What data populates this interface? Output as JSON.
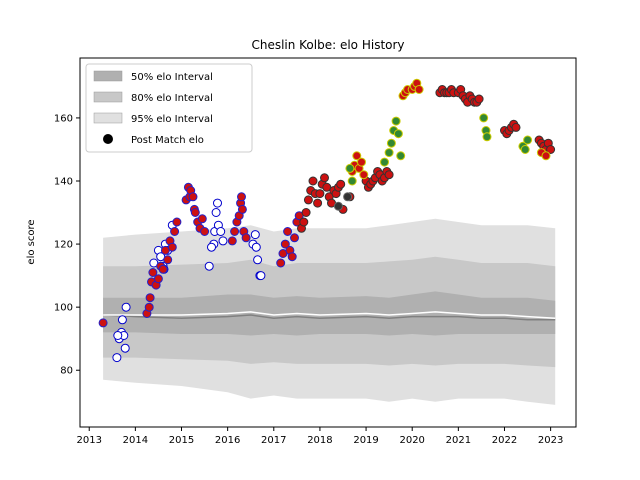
{
  "chart_data": {
    "type": "scatter",
    "title": "Cheslin Kolbe: elo History",
    "xlabel": "",
    "ylabel": "elo score",
    "xlim": [
      2012.8,
      2023.55
    ],
    "ylim": [
      62,
      179
    ],
    "xticks": [
      2013,
      2014,
      2015,
      2016,
      2017,
      2018,
      2019,
      2020,
      2021,
      2022,
      2023
    ],
    "xtick_labels": [
      "2013",
      "2014",
      "2015",
      "2016",
      "2017",
      "2018",
      "2019",
      "2020",
      "2021",
      "2022",
      "2023"
    ],
    "yticks": [
      80,
      100,
      120,
      140,
      160
    ],
    "ytick_labels": [
      "80",
      "100",
      "120",
      "140",
      "160"
    ],
    "grid": false,
    "legend_position": "top-left",
    "legend": [
      {
        "label": "50% elo Interval",
        "kind": "band",
        "color": "#b0b0b0"
      },
      {
        "label": "80% elo Interval",
        "kind": "band",
        "color": "#c8c8c8"
      },
      {
        "label": "95% elo Interval",
        "kind": "band",
        "color": "#e0e0e0"
      },
      {
        "label": "Post Match elo",
        "kind": "marker",
        "color": "#000000"
      }
    ],
    "intervals": {
      "x": [
        2013.3,
        2014.0,
        2015.0,
        2016.0,
        2016.5,
        2017.0,
        2017.5,
        2018.0,
        2019.0,
        2019.5,
        2020.0,
        2020.5,
        2021.0,
        2021.5,
        2022.0,
        2022.5,
        2023.1
      ],
      "median": [
        97.5,
        97,
        96.5,
        97,
        97.5,
        96.5,
        97,
        96.5,
        97,
        96.5,
        97,
        97,
        97,
        96.5,
        96.5,
        96,
        96
      ],
      "mean": [
        97.5,
        97.5,
        97.5,
        98,
        98.5,
        97.5,
        98,
        97.5,
        98,
        97.5,
        98,
        98.5,
        98,
        97.5,
        97.5,
        97,
        96.5
      ],
      "p50_low": [
        92,
        92,
        91.5,
        91.5,
        91,
        91.5,
        91,
        91.5,
        91.5,
        91,
        91.5,
        91,
        91.5,
        91.5,
        91.5,
        91.5,
        91.5
      ],
      "p50_high": [
        103,
        103,
        103,
        104,
        104,
        103,
        103.5,
        103,
        103.5,
        103,
        104,
        105,
        104,
        103,
        103,
        103,
        102
      ],
      "p80_low": [
        84,
        84,
        83.5,
        83,
        82,
        82.5,
        82,
        82,
        82,
        81.5,
        82,
        81.5,
        82,
        82,
        82,
        81.5,
        81
      ],
      "p80_high": [
        113,
        113,
        113.5,
        114,
        115,
        113,
        114,
        114,
        114,
        114.5,
        115,
        116,
        115,
        114,
        114,
        114,
        113
      ],
      "p95_low": [
        77,
        76,
        75,
        73,
        71,
        72,
        71,
        71,
        71,
        70,
        71,
        70,
        71,
        71,
        71,
        70,
        69
      ],
      "p95_high": [
        122,
        123,
        124,
        125,
        126,
        124,
        125,
        125,
        125,
        126,
        127,
        128,
        127,
        126,
        126,
        126,
        125
      ]
    },
    "series": [
      {
        "fill": "#ffffff",
        "edge": "#0000cc",
        "x": [
          2013.6,
          2013.65,
          2013.7,
          2013.72,
          2013.75,
          2013.8,
          2013.62,
          2013.78,
          2014.4,
          2014.5,
          2014.55,
          2014.6,
          2014.62,
          2014.65,
          2014.7,
          2014.8,
          2015.7,
          2015.72,
          2015.75,
          2015.78,
          2015.8,
          2015.85,
          2015.9,
          2015.6,
          2015.65,
          2016.55,
          2016.6,
          2016.62,
          2016.65,
          2016.7,
          2016.72
        ],
        "y": [
          84,
          90,
          92,
          96,
          91,
          100,
          91,
          87,
          114,
          118,
          116,
          113,
          112,
          120,
          118,
          126,
          120,
          124,
          130,
          133,
          126,
          124,
          121,
          113,
          119,
          120,
          123,
          119,
          115,
          110,
          110
        ]
      },
      {
        "fill": "#cc1111",
        "edge": "#2222cc",
        "x": [
          2013.3,
          2014.25,
          2014.3,
          2014.32,
          2014.35,
          2014.38,
          2014.45,
          2014.5,
          2014.55,
          2014.6,
          2014.65,
          2014.7,
          2014.75,
          2014.8,
          2014.85,
          2014.9,
          2015.1,
          2015.15,
          2015.18,
          2015.2,
          2015.25,
          2015.28,
          2015.3,
          2015.35,
          2015.4,
          2015.45,
          2015.5,
          2016.1,
          2016.15,
          2016.2,
          2016.25,
          2016.28,
          2016.3,
          2016.32,
          2016.35,
          2016.4,
          2017.15,
          2017.2,
          2017.25,
          2017.3,
          2017.35,
          2017.4,
          2017.45,
          2017.5,
          2017.55
        ],
        "y": [
          95,
          98,
          100,
          103,
          108,
          111,
          107,
          109,
          113,
          112,
          118,
          115,
          121,
          119,
          124,
          127,
          134,
          138,
          135,
          137,
          135,
          131,
          130,
          127,
          125,
          128,
          124,
          121,
          124,
          127,
          129,
          133,
          135,
          131,
          124,
          122,
          114,
          117,
          120,
          124,
          118,
          116,
          122,
          127,
          129
        ]
      },
      {
        "fill": "#cc1111",
        "edge": "#333333",
        "x": [
          2017.6,
          2017.65,
          2017.7,
          2017.75,
          2017.8,
          2017.85,
          2017.9,
          2017.95,
          2018.0,
          2018.05,
          2018.1,
          2018.15,
          2018.2,
          2018.25,
          2018.3,
          2018.35,
          2018.4,
          2018.45,
          2018.5,
          2018.65,
          2019.0,
          2019.05,
          2019.1,
          2019.15,
          2019.2,
          2019.25,
          2019.3,
          2019.35,
          2019.4,
          2019.45,
          2019.5,
          2020.6,
          2020.65,
          2020.7,
          2020.75,
          2020.8,
          2020.85,
          2020.9,
          2021.0,
          2021.05,
          2021.1,
          2021.15,
          2021.2,
          2021.25,
          2021.3,
          2021.35,
          2021.4,
          2021.45,
          2022.0,
          2022.05,
          2022.1,
          2022.15,
          2022.2,
          2022.25,
          2022.75,
          2022.8,
          2022.85,
          2022.9,
          2022.95,
          2023.0
        ],
        "y": [
          125,
          127,
          130,
          134,
          137,
          140,
          136,
          133,
          136,
          139,
          141,
          138,
          135,
          133,
          137,
          136,
          138,
          139,
          131,
          135,
          140,
          138,
          139,
          140,
          141,
          143,
          142,
          140,
          141,
          143,
          142,
          168,
          169,
          168,
          168,
          168,
          169,
          168,
          168,
          169,
          167,
          166,
          165,
          167,
          166,
          165,
          165,
          166,
          156,
          155,
          156,
          157,
          158,
          157,
          153,
          152,
          151,
          150,
          152,
          150
        ]
      },
      {
        "fill": "#cc1111",
        "edge": "#cccc00",
        "x": [
          2018.7,
          2018.75,
          2018.8,
          2018.85,
          2018.9,
          2018.95,
          2019.8,
          2019.85,
          2019.9,
          2020.0,
          2020.05,
          2020.1,
          2020.15,
          2022.8,
          2022.9
        ],
        "y": [
          143,
          145,
          148,
          144,
          146,
          142,
          167,
          168,
          169,
          169,
          170,
          171,
          169,
          149,
          148
        ]
      },
      {
        "fill": "#338833",
        "edge": "#cccc00",
        "x": [
          2018.65,
          2018.7,
          2019.4,
          2019.5,
          2019.55,
          2019.6,
          2019.65,
          2019.7,
          2019.75,
          2021.55,
          2021.6,
          2021.62,
          2022.4,
          2022.45,
          2022.5
        ],
        "y": [
          144,
          140,
          146,
          149,
          152,
          156,
          159,
          155,
          148,
          160,
          156,
          154,
          151,
          150,
          153
        ]
      },
      {
        "fill": "#333333",
        "edge": "#666666",
        "x": [
          2018.4,
          2018.6
        ],
        "y": [
          132,
          135
        ]
      }
    ]
  }
}
